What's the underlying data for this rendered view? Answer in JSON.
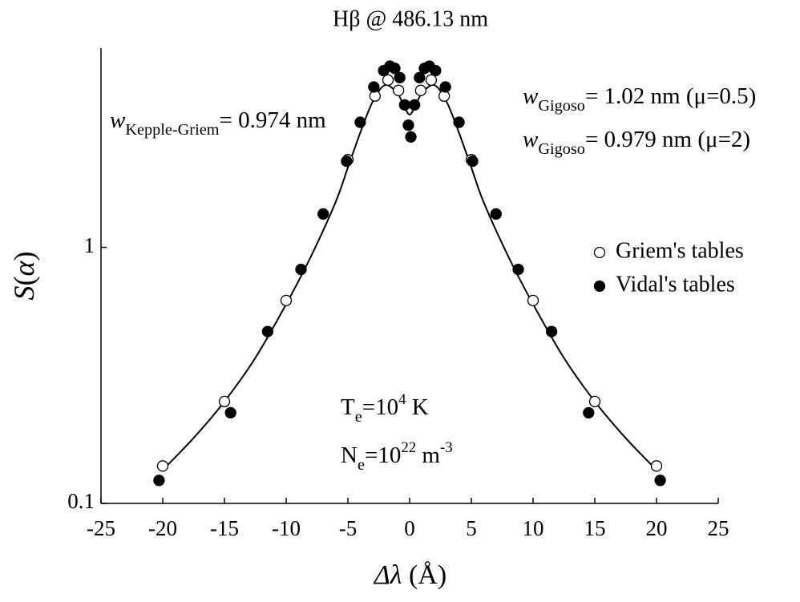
{
  "chart_data": {
    "type": "scatter",
    "title": "Hβ @ 486.13 nm",
    "xlabel": [
      {
        "text": "Δλ",
        "style": "italic"
      },
      {
        "text": " (Å)",
        "style": "normal"
      }
    ],
    "ylabel": [
      {
        "text": "S",
        "style": "italic"
      },
      {
        "text": "(",
        "style": "normal"
      },
      {
        "text": "α",
        "style": "italic"
      },
      {
        "text": ")",
        "style": "normal"
      }
    ],
    "xlim": [
      -25,
      25
    ],
    "xticks": [
      -25,
      -20,
      -15,
      -10,
      -5,
      0,
      5,
      10,
      15,
      20,
      25
    ],
    "ylim": [
      0.1,
      6
    ],
    "yticks": [
      0.1,
      1
    ],
    "yscale": "log",
    "legend": "right",
    "series": [
      {
        "name": "Griem's tables",
        "color": "#000000",
        "marker": "open",
        "x": [
          -20,
          -15,
          -10,
          -5,
          -2.8,
          -1.75,
          -0.9,
          0.9,
          1.75,
          2.8,
          5,
          10,
          15,
          20
        ],
        "values": [
          0.14,
          0.25,
          0.62,
          2.2,
          3.9,
          4.5,
          4.1,
          4.1,
          4.5,
          3.9,
          2.2,
          0.62,
          0.25,
          0.14
        ]
      },
      {
        "name": "Vidal's tables",
        "color": "#000000",
        "marker": "filled",
        "x": [
          -20.3,
          -14.5,
          -11.5,
          -8.8,
          -7,
          -5.1,
          -4,
          -2.9,
          -2.1,
          -1.6,
          -1.2,
          -0.8,
          -0.4,
          -0.1,
          0.1,
          0.4,
          0.8,
          1.2,
          1.6,
          2.1,
          2.9,
          4,
          5.1,
          7,
          8.8,
          11.5,
          14.5,
          20.3
        ],
        "values": [
          0.123,
          0.226,
          0.469,
          0.82,
          1.35,
          2.17,
          3.08,
          4.23,
          4.9,
          5.1,
          5.0,
          4.6,
          3.6,
          3.0,
          2.7,
          3.6,
          4.6,
          5.0,
          5.1,
          4.9,
          4.23,
          3.08,
          2.17,
          1.35,
          0.82,
          0.469,
          0.226,
          0.123
        ]
      }
    ],
    "fit": {
      "color": "#000000",
      "x": [
        -20,
        -17.5,
        -15,
        -12.5,
        -10,
        -8,
        -6,
        -5,
        -4,
        -3,
        -2,
        -1,
        -0.5,
        0,
        0.5,
        1,
        2,
        3,
        4,
        5,
        6,
        8,
        10,
        12.5,
        15,
        17.5,
        20
      ],
      "values": [
        0.135,
        0.18,
        0.25,
        0.37,
        0.6,
        0.92,
        1.5,
        2.05,
        2.8,
        3.7,
        4.3,
        4.0,
        3.6,
        3.3,
        3.6,
        4.0,
        4.3,
        3.7,
        2.8,
        2.05,
        1.5,
        0.92,
        0.6,
        0.37,
        0.25,
        0.18,
        0.135
      ]
    },
    "annotations": [
      {
        "parts": [
          {
            "text": "w",
            "style": "italic"
          },
          {
            "text": "Kepple-Griem",
            "style": "sub"
          },
          {
            "text": "= 0.974 nm",
            "style": "normal"
          }
        ]
      },
      {
        "parts": [
          {
            "text": "w",
            "style": "italic"
          },
          {
            "text": "Gigoso",
            "style": "sub"
          },
          {
            "text": "= 1.02 nm (μ=0.5)",
            "style": "normal"
          }
        ]
      },
      {
        "parts": [
          {
            "text": "w",
            "style": "italic"
          },
          {
            "text": "Gigoso",
            "style": "sub"
          },
          {
            "text": "= 0.979 nm (μ=2)",
            "style": "normal"
          }
        ]
      },
      {
        "parts": [
          {
            "text": "T",
            "style": "normal"
          },
          {
            "text": "e",
            "style": "sub"
          },
          {
            "text": "=10",
            "style": "normal"
          },
          {
            "text": "4",
            "style": "sup"
          },
          {
            "text": " K",
            "style": "normal"
          }
        ]
      },
      {
        "parts": [
          {
            "text": "N",
            "style": "normal"
          },
          {
            "text": "e",
            "style": "sub"
          },
          {
            "text": "=10",
            "style": "normal"
          },
          {
            "text": "22",
            "style": "sup"
          },
          {
            "text": " m",
            "style": "normal"
          },
          {
            "text": "-3",
            "style": "sup"
          }
        ]
      }
    ]
  }
}
